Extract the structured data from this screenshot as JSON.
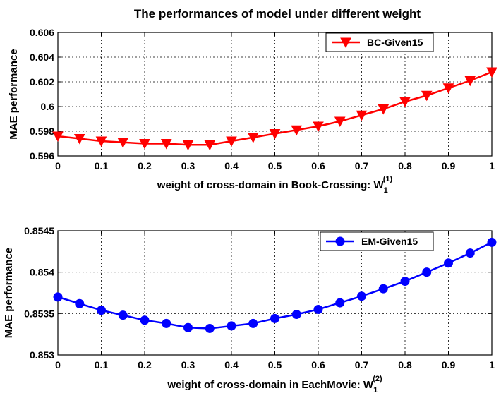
{
  "figure_title": "The performances of model under different weight",
  "chart_data": [
    {
      "type": "line",
      "title": "The performances of model under different weight",
      "xlabel": "weight of cross-domain in Book-Crossing: W",
      "xlabel_sub": "1",
      "xlabel_sup": "(1)",
      "ylabel": "MAE performance",
      "xlim": [
        0,
        1
      ],
      "ylim": [
        0.596,
        0.606
      ],
      "xticks": [
        0,
        0.1,
        0.2,
        0.3,
        0.4,
        0.5,
        0.6,
        0.7,
        0.8,
        0.9,
        1
      ],
      "xtick_labels": [
        "0",
        "0.1",
        "0.2",
        "0.3",
        "0.4",
        "0.5",
        "0.6",
        "0.7",
        "0.8",
        "0.9",
        "1"
      ],
      "yticks": [
        0.596,
        0.598,
        0.6,
        0.602,
        0.604,
        0.606
      ],
      "ytick_labels": [
        "0.596",
        "0.598",
        "0.6",
        "0.602",
        "0.604",
        "0.606"
      ],
      "grid": true,
      "legend_position": "top-right",
      "series": [
        {
          "name": "BC-Given15",
          "color": "#ff0000",
          "marker": "triangle-down",
          "x": [
            0,
            0.05,
            0.1,
            0.15,
            0.2,
            0.25,
            0.3,
            0.35,
            0.4,
            0.45,
            0.5,
            0.55,
            0.6,
            0.65,
            0.7,
            0.75,
            0.8,
            0.85,
            0.9,
            0.95,
            1
          ],
          "values": [
            0.5976,
            0.5974,
            0.5972,
            0.5971,
            0.597,
            0.597,
            0.5969,
            0.5969,
            0.5972,
            0.5975,
            0.5978,
            0.5981,
            0.5984,
            0.5988,
            0.5993,
            0.5998,
            0.6004,
            0.6009,
            0.6015,
            0.6021,
            0.6028
          ]
        }
      ]
    },
    {
      "type": "line",
      "title": "",
      "xlabel": "weight of cross-domain in EachMovie: W",
      "xlabel_sub": "1",
      "xlabel_sup": "(2)",
      "ylabel": "MAE performance",
      "xlim": [
        0,
        1
      ],
      "ylim": [
        0.853,
        0.8545
      ],
      "xticks": [
        0,
        0.1,
        0.2,
        0.3,
        0.4,
        0.5,
        0.6,
        0.7,
        0.8,
        0.9,
        1
      ],
      "xtick_labels": [
        "0",
        "0.1",
        "0.2",
        "0.3",
        "0.4",
        "0.5",
        "0.6",
        "0.7",
        "0.8",
        "0.9",
        "1"
      ],
      "yticks": [
        0.853,
        0.8535,
        0.854,
        0.8545
      ],
      "ytick_labels": [
        "0.853",
        "0.8535",
        "0.854",
        "0.8545"
      ],
      "grid": true,
      "legend_position": "top-right",
      "series": [
        {
          "name": "EM-Given15",
          "color": "#0000ff",
          "marker": "circle",
          "x": [
            0,
            0.05,
            0.1,
            0.15,
            0.2,
            0.25,
            0.3,
            0.35,
            0.4,
            0.45,
            0.5,
            0.55,
            0.6,
            0.65,
            0.7,
            0.75,
            0.8,
            0.85,
            0.9,
            0.95,
            1
          ],
          "values": [
            0.8537,
            0.85362,
            0.85354,
            0.85348,
            0.85342,
            0.85338,
            0.85333,
            0.85332,
            0.85335,
            0.85338,
            0.85344,
            0.85349,
            0.85355,
            0.85363,
            0.85371,
            0.8538,
            0.85389,
            0.854,
            0.85411,
            0.85423,
            0.85436
          ]
        }
      ]
    }
  ]
}
